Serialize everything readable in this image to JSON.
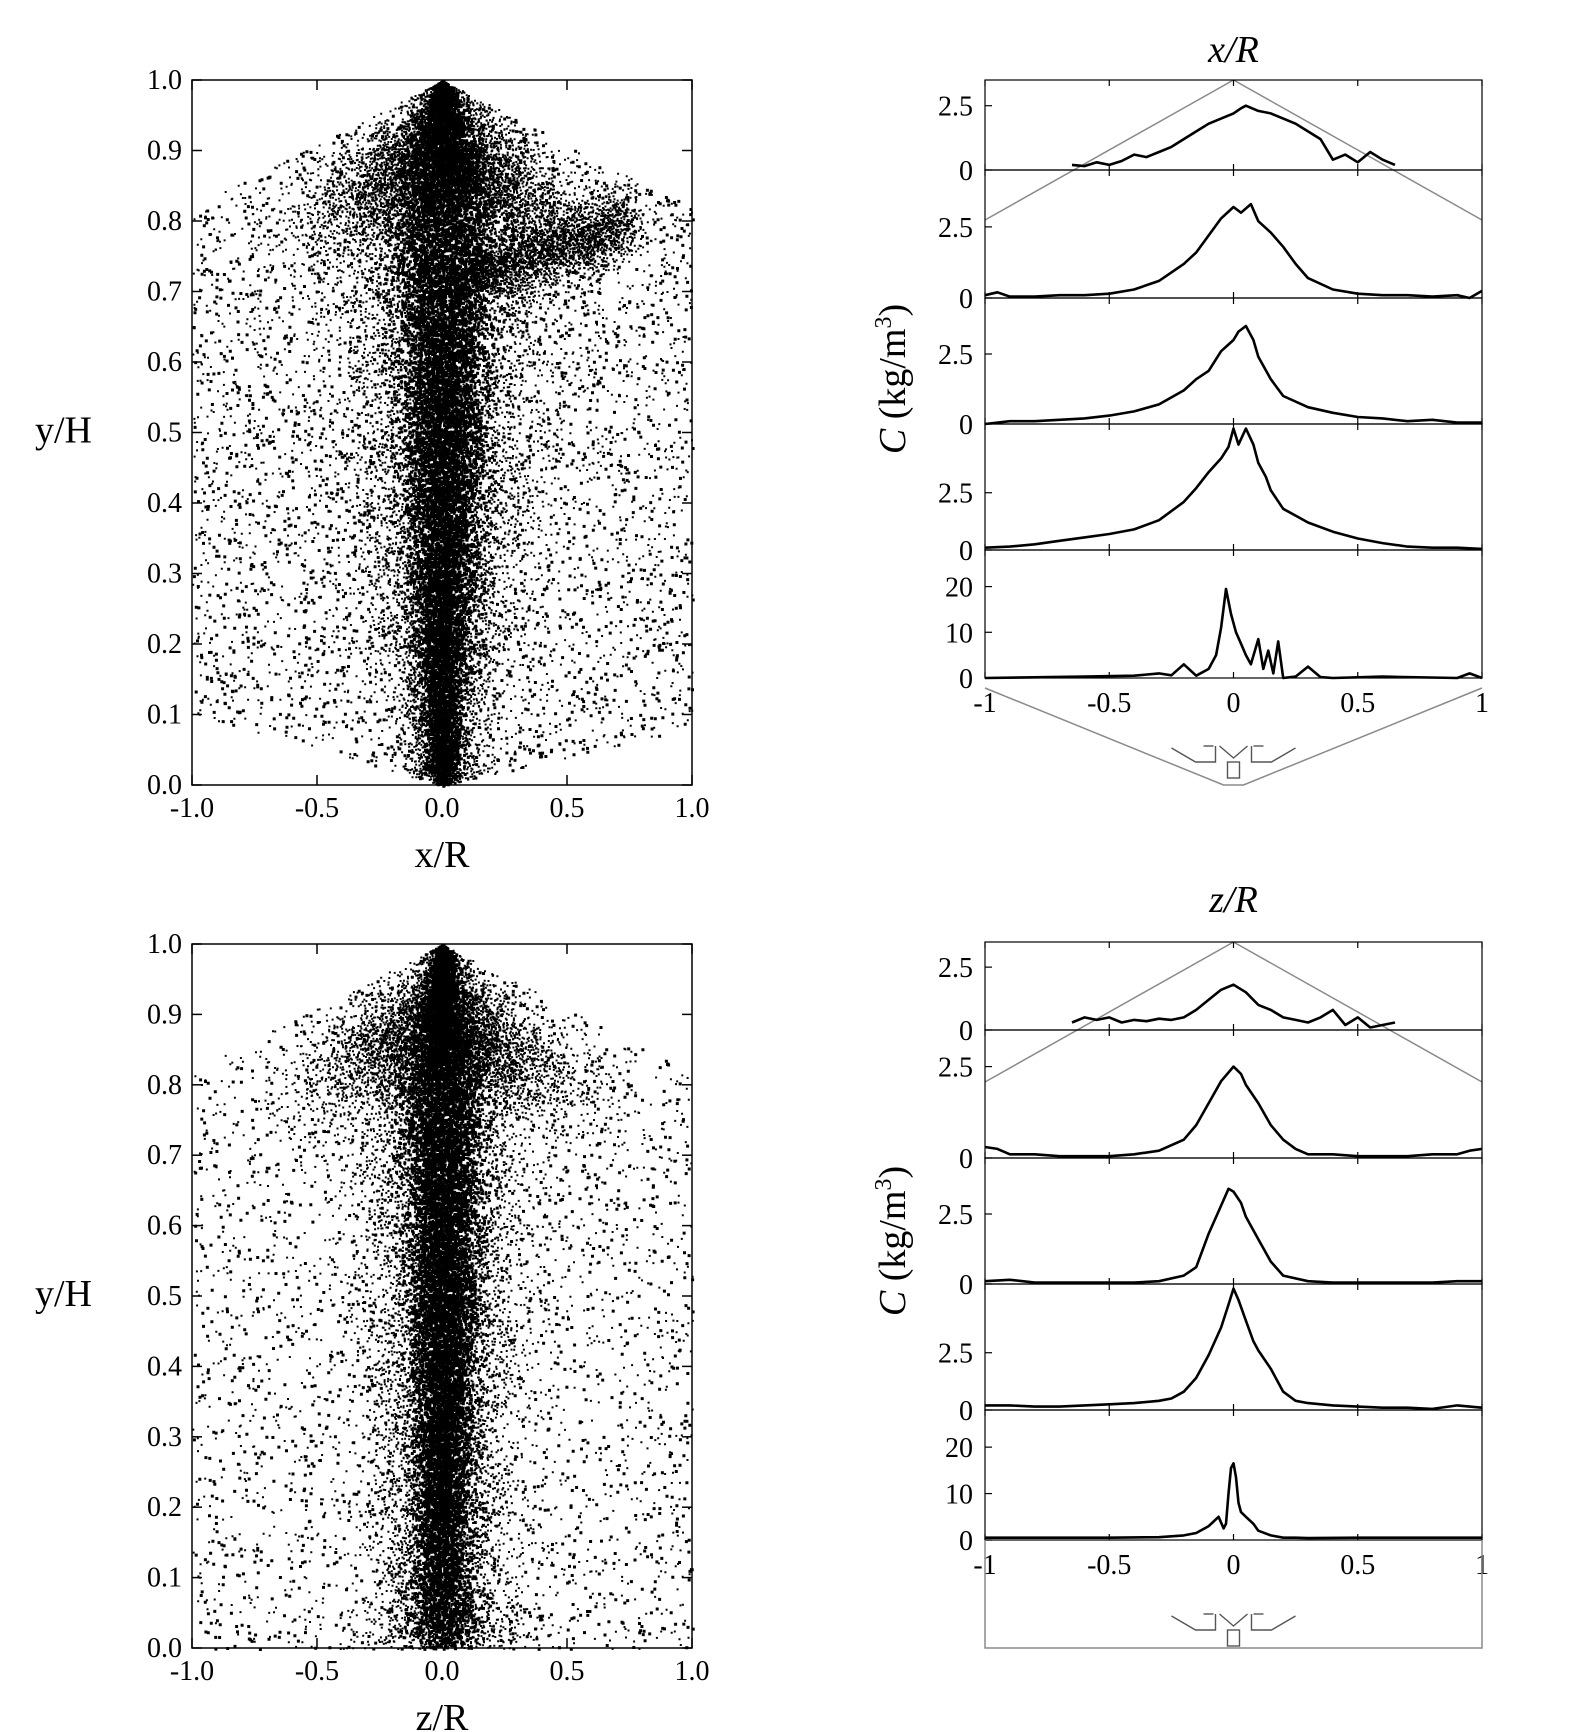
{
  "chart_data": [
    {
      "type": "scatter",
      "name": "top-left-scatter",
      "xlabel": "x/R",
      "ylabel": "y/H",
      "xlim": [
        -1.0,
        1.0
      ],
      "ylim": [
        0.0,
        1.0
      ],
      "x_ticks": [
        "-1.0",
        "-0.5",
        "0.0",
        "0.5",
        "1.0"
      ],
      "y_ticks": [
        "0.0",
        "0.1",
        "0.2",
        "0.3",
        "0.4",
        "0.5",
        "0.6",
        "0.7",
        "0.8",
        "0.9",
        "1.0"
      ],
      "grid": false,
      "boundary": [
        [
          -1.0,
          0.1
        ],
        [
          -1.0,
          0.82
        ],
        [
          0.0,
          1.0
        ],
        [
          1.0,
          0.82
        ],
        [
          1.0,
          0.08
        ],
        [
          0.0,
          0.0
        ]
      ],
      "density_profile": {
        "core_halfwidth_at_y": [
          [
            0.02,
            0.05
          ],
          [
            0.1,
            0.07
          ],
          [
            0.3,
            0.12
          ],
          [
            0.5,
            0.14
          ],
          [
            0.7,
            0.17
          ],
          [
            0.8,
            0.2
          ],
          [
            0.9,
            0.12
          ],
          [
            1.0,
            0.02
          ]
        ],
        "note_arm": "dense band from (0.1, 0.73) to (0.75, 0.8)"
      }
    },
    {
      "type": "scatter",
      "name": "bottom-left-scatter",
      "xlabel": "z/R",
      "ylabel": "y/H",
      "xlim": [
        -1.0,
        1.0
      ],
      "ylim": [
        0.0,
        1.0
      ],
      "x_ticks": [
        "-1.0",
        "-0.5",
        "0.0",
        "0.5",
        "1.0"
      ],
      "y_ticks": [
        "0.0",
        "0.1",
        "0.2",
        "0.3",
        "0.4",
        "0.5",
        "0.6",
        "0.7",
        "0.8",
        "0.9",
        "1.0"
      ],
      "grid": false,
      "boundary": [
        [
          -1.0,
          0.0
        ],
        [
          -1.0,
          0.82
        ],
        [
          0.0,
          1.0
        ],
        [
          1.0,
          0.82
        ],
        [
          1.0,
          0.0
        ]
      ],
      "density_profile": {
        "core_halfwidth_at_y": [
          [
            0.05,
            0.12
          ],
          [
            0.1,
            0.1
          ],
          [
            0.3,
            0.1
          ],
          [
            0.5,
            0.12
          ],
          [
            0.7,
            0.13
          ],
          [
            0.8,
            0.15
          ],
          [
            0.9,
            0.08
          ],
          [
            1.0,
            0.02
          ]
        ]
      }
    },
    {
      "type": "line",
      "name": "top-right-profiles",
      "title": "x/R",
      "ylabel_prefix": "C",
      "ylabel_suffix": "(kg/m",
      "ylabel_sup": "3",
      "ylabel_close": ")",
      "xlim": [
        -1,
        1
      ],
      "x_ticks": [
        "-1",
        "-0.5",
        "0",
        "0.5",
        "1"
      ],
      "panels": [
        {
          "ylim": [
            0,
            3.5
          ],
          "y_ticks": [
            "0",
            "2.5"
          ],
          "y_tick_values": [
            0,
            2.5
          ],
          "x": [
            -0.65,
            -0.6,
            -0.55,
            -0.5,
            -0.45,
            -0.4,
            -0.35,
            -0.3,
            -0.25,
            -0.2,
            -0.15,
            -0.1,
            -0.05,
            0.0,
            0.03,
            0.05,
            0.1,
            0.15,
            0.2,
            0.25,
            0.3,
            0.35,
            0.4,
            0.45,
            0.5,
            0.55,
            0.6,
            0.65
          ],
          "y": [
            0.2,
            0.15,
            0.3,
            0.2,
            0.35,
            0.6,
            0.5,
            0.7,
            0.9,
            1.2,
            1.5,
            1.8,
            2.0,
            2.2,
            2.4,
            2.5,
            2.3,
            2.2,
            2.0,
            1.8,
            1.5,
            1.2,
            0.4,
            0.6,
            0.3,
            0.7,
            0.4,
            0.2
          ]
        },
        {
          "ylim": [
            0,
            4.5
          ],
          "y_ticks": [
            "0",
            "2.5"
          ],
          "y_tick_values": [
            0,
            2.5
          ],
          "x": [
            -1.0,
            -0.95,
            -0.9,
            -0.8,
            -0.7,
            -0.6,
            -0.5,
            -0.4,
            -0.3,
            -0.2,
            -0.15,
            -0.1,
            -0.05,
            0.0,
            0.03,
            0.07,
            0.1,
            0.15,
            0.2,
            0.25,
            0.3,
            0.4,
            0.5,
            0.6,
            0.7,
            0.8,
            0.9,
            0.95,
            1.0
          ],
          "y": [
            0.1,
            0.2,
            0.05,
            0.05,
            0.1,
            0.1,
            0.15,
            0.3,
            0.6,
            1.2,
            1.6,
            2.2,
            2.8,
            3.2,
            3.0,
            3.3,
            2.7,
            2.3,
            1.8,
            1.2,
            0.7,
            0.3,
            0.15,
            0.1,
            0.1,
            0.05,
            0.1,
            0.0,
            0.25
          ]
        },
        {
          "ylim": [
            0,
            4.5
          ],
          "y_ticks": [
            "0",
            "2.5"
          ],
          "y_tick_values": [
            0,
            2.5
          ],
          "x": [
            -1.0,
            -0.9,
            -0.8,
            -0.7,
            -0.6,
            -0.5,
            -0.4,
            -0.3,
            -0.2,
            -0.15,
            -0.1,
            -0.05,
            0.0,
            0.02,
            0.05,
            0.08,
            0.1,
            0.15,
            0.2,
            0.3,
            0.4,
            0.5,
            0.6,
            0.7,
            0.8,
            0.9,
            1.0
          ],
          "y": [
            0.0,
            0.1,
            0.1,
            0.15,
            0.2,
            0.3,
            0.45,
            0.7,
            1.2,
            1.6,
            1.9,
            2.6,
            3.0,
            3.3,
            3.5,
            3.0,
            2.4,
            1.6,
            1.0,
            0.6,
            0.4,
            0.25,
            0.2,
            0.1,
            0.15,
            0.05,
            0.05
          ]
        },
        {
          "ylim": [
            0,
            5.5
          ],
          "y_ticks": [
            "0",
            "2.5"
          ],
          "y_tick_values": [
            0,
            2.5
          ],
          "x": [
            -1.0,
            -0.9,
            -0.8,
            -0.7,
            -0.6,
            -0.5,
            -0.4,
            -0.3,
            -0.25,
            -0.2,
            -0.15,
            -0.1,
            -0.05,
            -0.02,
            0.0,
            0.02,
            0.05,
            0.08,
            0.1,
            0.13,
            0.15,
            0.2,
            0.25,
            0.3,
            0.4,
            0.5,
            0.6,
            0.7,
            0.8,
            0.9,
            1.0
          ],
          "y": [
            0.1,
            0.15,
            0.25,
            0.4,
            0.55,
            0.7,
            0.9,
            1.3,
            1.7,
            2.1,
            2.7,
            3.4,
            4.0,
            4.5,
            5.3,
            4.6,
            5.3,
            4.6,
            3.8,
            3.2,
            2.6,
            1.8,
            1.5,
            1.2,
            0.8,
            0.5,
            0.3,
            0.15,
            0.1,
            0.1,
            0.05
          ]
        },
        {
          "ylim": [
            0,
            28
          ],
          "y_ticks": [
            "0",
            "10",
            "20"
          ],
          "y_tick_values": [
            0,
            10,
            20
          ],
          "x": [
            -1.0,
            -0.6,
            -0.4,
            -0.3,
            -0.25,
            -0.2,
            -0.15,
            -0.1,
            -0.07,
            -0.05,
            -0.03,
            -0.01,
            0.01,
            0.03,
            0.05,
            0.07,
            0.1,
            0.12,
            0.14,
            0.16,
            0.18,
            0.2,
            0.25,
            0.3,
            0.35,
            0.4,
            0.6,
            0.9,
            0.95,
            1.0
          ],
          "y": [
            0.0,
            0.3,
            0.5,
            1.0,
            0.6,
            3.0,
            0.5,
            2.0,
            5.0,
            11.0,
            19.5,
            14.0,
            10.0,
            7.5,
            5.0,
            3.0,
            8.5,
            2.0,
            6.0,
            1.0,
            8.0,
            0.0,
            0.3,
            2.5,
            0.2,
            0.0,
            0.3,
            0.0,
            1.0,
            0.0
          ]
        }
      ]
    },
    {
      "type": "line",
      "name": "bottom-right-profiles",
      "title": "z/R",
      "ylabel_prefix": "C",
      "ylabel_suffix": "(kg/m",
      "ylabel_sup": "3",
      "ylabel_close": ")",
      "xlim": [
        -1,
        1
      ],
      "x_ticks": [
        "-1",
        "-0.5",
        "0",
        "0.5",
        "1"
      ],
      "panels": [
        {
          "ylim": [
            0,
            3.5
          ],
          "y_ticks": [
            "0",
            "2.5"
          ],
          "y_tick_values": [
            0,
            2.5
          ],
          "x": [
            -0.65,
            -0.6,
            -0.55,
            -0.5,
            -0.45,
            -0.4,
            -0.35,
            -0.3,
            -0.25,
            -0.2,
            -0.15,
            -0.1,
            -0.05,
            0.0,
            0.05,
            0.1,
            0.15,
            0.2,
            0.25,
            0.3,
            0.35,
            0.4,
            0.45,
            0.5,
            0.55,
            0.6,
            0.65
          ],
          "y": [
            0.3,
            0.5,
            0.4,
            0.5,
            0.3,
            0.4,
            0.35,
            0.45,
            0.4,
            0.5,
            0.8,
            1.2,
            1.6,
            1.8,
            1.5,
            1.0,
            0.8,
            0.5,
            0.4,
            0.3,
            0.5,
            0.8,
            0.2,
            0.5,
            0.1,
            0.2,
            0.3
          ]
        },
        {
          "ylim": [
            0,
            3.5
          ],
          "y_ticks": [
            "0",
            "2.5"
          ],
          "y_tick_values": [
            0,
            2.5
          ],
          "x": [
            -1.0,
            -0.95,
            -0.9,
            -0.8,
            -0.7,
            -0.6,
            -0.5,
            -0.4,
            -0.3,
            -0.2,
            -0.15,
            -0.1,
            -0.05,
            0.0,
            0.03,
            0.05,
            0.1,
            0.15,
            0.2,
            0.25,
            0.3,
            0.4,
            0.5,
            0.6,
            0.7,
            0.8,
            0.9,
            0.95,
            1.0
          ],
          "y": [
            0.3,
            0.25,
            0.1,
            0.1,
            0.05,
            0.05,
            0.05,
            0.1,
            0.2,
            0.5,
            0.9,
            1.5,
            2.1,
            2.5,
            2.3,
            2.0,
            1.5,
            0.9,
            0.5,
            0.25,
            0.1,
            0.1,
            0.05,
            0.05,
            0.05,
            0.1,
            0.1,
            0.2,
            0.25
          ]
        },
        {
          "ylim": [
            0,
            4.5
          ],
          "y_ticks": [
            "0",
            "2.5"
          ],
          "y_tick_values": [
            0,
            2.5
          ],
          "x": [
            -1.0,
            -0.9,
            -0.8,
            -0.7,
            -0.6,
            -0.5,
            -0.4,
            -0.3,
            -0.2,
            -0.15,
            -0.1,
            -0.05,
            -0.02,
            0.0,
            0.03,
            0.05,
            0.1,
            0.15,
            0.2,
            0.3,
            0.4,
            0.5,
            0.6,
            0.7,
            0.8,
            0.9,
            1.0
          ],
          "y": [
            0.1,
            0.15,
            0.05,
            0.05,
            0.05,
            0.05,
            0.05,
            0.1,
            0.3,
            0.6,
            1.8,
            2.8,
            3.4,
            3.3,
            2.9,
            2.4,
            1.6,
            0.8,
            0.3,
            0.1,
            0.05,
            0.05,
            0.05,
            0.05,
            0.05,
            0.1,
            0.1
          ]
        },
        {
          "ylim": [
            0,
            5.5
          ],
          "y_ticks": [
            "0",
            "2.5"
          ],
          "y_tick_values": [
            0,
            2.5
          ],
          "x": [
            -1.0,
            -0.9,
            -0.8,
            -0.7,
            -0.6,
            -0.5,
            -0.4,
            -0.3,
            -0.25,
            -0.2,
            -0.15,
            -0.1,
            -0.05,
            -0.02,
            0.0,
            0.02,
            0.05,
            0.08,
            0.1,
            0.15,
            0.2,
            0.25,
            0.3,
            0.4,
            0.5,
            0.6,
            0.7,
            0.8,
            0.9,
            1.0
          ],
          "y": [
            0.2,
            0.2,
            0.15,
            0.15,
            0.2,
            0.25,
            0.3,
            0.4,
            0.5,
            0.8,
            1.4,
            2.4,
            3.6,
            4.6,
            5.3,
            4.8,
            3.9,
            3.0,
            2.6,
            1.8,
            0.8,
            0.4,
            0.3,
            0.2,
            0.15,
            0.1,
            0.1,
            0.05,
            0.2,
            0.1
          ]
        },
        {
          "ylim": [
            0,
            28
          ],
          "y_ticks": [
            "0",
            "10",
            "20"
          ],
          "y_tick_values": [
            0,
            10,
            20
          ],
          "x": [
            -1.0,
            -0.5,
            -0.3,
            -0.2,
            -0.15,
            -0.1,
            -0.06,
            -0.04,
            -0.03,
            -0.02,
            -0.01,
            0.0,
            0.01,
            0.02,
            0.03,
            0.05,
            0.08,
            0.1,
            0.15,
            0.2,
            0.25,
            0.3,
            0.5,
            0.8,
            1.0
          ],
          "y": [
            0.5,
            0.5,
            0.6,
            1.0,
            1.5,
            3.0,
            5.0,
            2.5,
            3.5,
            10.0,
            15.5,
            16.5,
            13.5,
            8.0,
            6.0,
            5.0,
            3.5,
            2.0,
            1.0,
            0.5,
            0.5,
            0.4,
            0.5,
            0.5,
            0.5
          ]
        }
      ]
    }
  ]
}
